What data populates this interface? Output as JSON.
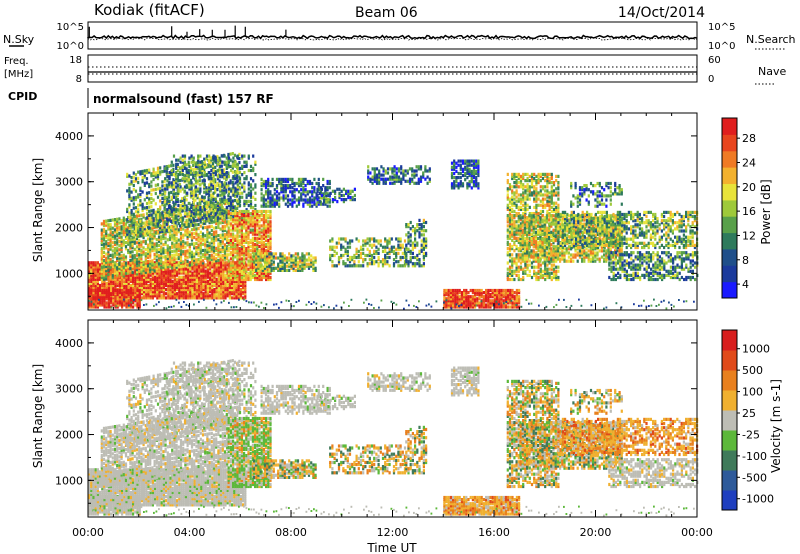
{
  "header": {
    "station": "Kodiak (fitACF)",
    "beam": "Beam 06",
    "date": "14/Oct/2014"
  },
  "status_panels": {
    "nsky_label": "N.Sky",
    "nsky_ticks": [
      "10^5",
      "10^0"
    ],
    "nsearch_label": "N.Search",
    "nsearch_ticks": [
      "10^5",
      "10^0"
    ],
    "freq_label_1": "Freq.",
    "freq_label_2": "[MHz]",
    "freq_ticks": [
      "18",
      "8"
    ],
    "nave_label": "Nave",
    "nave_ticks": [
      "60",
      "0"
    ],
    "cpid_label": "CPID",
    "cpid_text": "normalsound (fast) 157 RF"
  },
  "colorbars": {
    "power": {
      "label": "Power [dB]",
      "ticks": [
        "28",
        "24",
        "20",
        "16",
        "12",
        "8",
        "4"
      ],
      "colors": [
        "#1a1aff",
        "#1b3a9c",
        "#1f4f8a",
        "#2e7a5c",
        "#58a04a",
        "#9ec93a",
        "#e8e33a",
        "#f3b12e",
        "#ef7a24",
        "#e8451e",
        "#e01e1e"
      ]
    },
    "velocity": {
      "label": "Velocity [m s-1]",
      "ticks": [
        "1000",
        "500",
        "100",
        "25",
        "-25",
        "-100",
        "-500",
        "-1000"
      ],
      "colors": [
        "#1f3fbf",
        "#2e5a9a",
        "#3f7a5a",
        "#5cb83a",
        "#bdbdb5",
        "#f0b030",
        "#e8801e",
        "#e04a1a",
        "#d81e1e"
      ]
    }
  },
  "chart_data": [
    {
      "type": "heatmap",
      "title": "Power",
      "ylabel": "Slant Range [km]",
      "xlabel": "Time UT",
      "xlim": [
        "00:00",
        "24:00"
      ],
      "ylim": [
        200,
        4500
      ],
      "yticks": [
        1000,
        2000,
        3000,
        4000
      ],
      "xticks": [
        "00:00",
        "04:00",
        "08:00",
        "12:00",
        "16:00",
        "20:00",
        "00:00"
      ],
      "colorbar_label": "Power [dB]",
      "colorbar_range": [
        0,
        30
      ]
    },
    {
      "type": "heatmap",
      "title": "Velocity",
      "ylabel": "Slant Range [km]",
      "xlabel": "Time UT",
      "xlim": [
        "00:00",
        "24:00"
      ],
      "ylim": [
        200,
        4500
      ],
      "yticks": [
        1000,
        2000,
        3000,
        4000
      ],
      "xticks": [
        "00:00",
        "04:00",
        "08:00",
        "12:00",
        "16:00",
        "20:00",
        "00:00"
      ],
      "colorbar_label": "Velocity [m s-1]",
      "colorbar_range": [
        -1000,
        1000
      ]
    }
  ],
  "axes": {
    "xlabel": "Time UT",
    "xticks": [
      "00:00",
      "04:00",
      "08:00",
      "12:00",
      "16:00",
      "20:00",
      "00:00"
    ],
    "ylabel": "Slant Range [km]",
    "yticks": [
      "1000",
      "2000",
      "3000",
      "4000"
    ]
  }
}
